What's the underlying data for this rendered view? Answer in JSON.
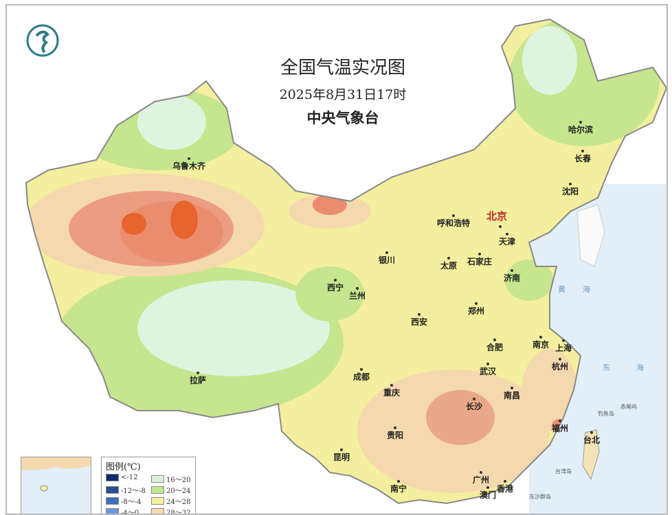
{
  "title": "全国气温实况图",
  "datetime": "2025年8月31日17时",
  "publisher": "中央气象台",
  "logo_icon": "cma-logo-icon",
  "capital": "北京",
  "cities": [
    "乌鲁木齐",
    "天津",
    "哈尔滨",
    "长春",
    "沈阳",
    "呼和浩特",
    "银川",
    "太原",
    "石家庄",
    "济南",
    "西宁",
    "兰州",
    "郑州",
    "西安",
    "合肥",
    "南京",
    "上海",
    "杭州",
    "武汉",
    "成都",
    "拉萨",
    "重庆",
    "长沙",
    "南昌",
    "贵阳",
    "福州",
    "台北",
    "昆明",
    "南宁",
    "广州",
    "香港",
    "澳门"
  ],
  "seas": [
    "黄",
    "海",
    "东",
    "海"
  ],
  "islands": [
    "台湾岛",
    "东沙群岛",
    "钓鱼岛",
    "赤尾屿"
  ],
  "legend": {
    "title": "图例(℃)",
    "items": [
      {
        "label": "<-12",
        "color": "#0d2a6b"
      },
      {
        "label": "-12～-8",
        "color": "#25508f"
      },
      {
        "label": "-8～-4",
        "color": "#3d6fb8"
      },
      {
        "label": "-4～0",
        "color": "#6c9ad6"
      },
      {
        "label": "16～20",
        "color": "#d9f2d8"
      },
      {
        "label": "20～24",
        "color": "#c3e78f"
      },
      {
        "label": "24～28",
        "color": "#f5f0a0"
      },
      {
        "label": "28～32",
        "color": "#f5dcae"
      }
    ]
  },
  "colors": {
    "sea": "#e2eef8",
    "hot": "#e98d6e",
    "very_hot": "#e7642e",
    "warm": "#f4d8ae",
    "mild": "#f3ef9e",
    "cool": "#c6e58e",
    "cold": "#e0f3df"
  }
}
